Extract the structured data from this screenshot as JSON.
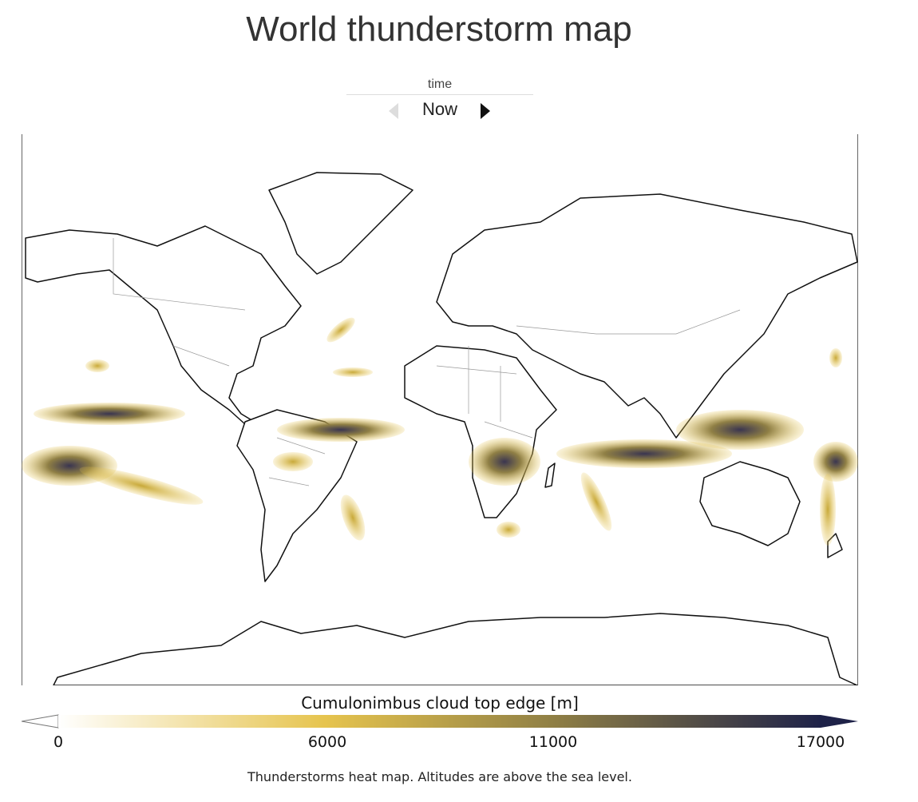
{
  "title": "World thunderstorm map",
  "time_control": {
    "label": "time",
    "value": "Now",
    "prev_icon": "triangle-left-icon",
    "next_icon": "triangle-right-icon",
    "prev_enabled": false
  },
  "colorbar": {
    "title": "Cumulonimbus cloud top edge [m]",
    "ticks": [
      "0",
      "6000",
      "11000",
      "17000"
    ],
    "tick_values": [
      0,
      6000,
      11000,
      17000
    ],
    "range": [
      0,
      17000
    ],
    "colors": [
      "#ffffff",
      "#e6c44e",
      "#8f7f45",
      "#1e2248"
    ]
  },
  "caption": "Thunderstorms heat map. Altitudes are above the sea level."
}
